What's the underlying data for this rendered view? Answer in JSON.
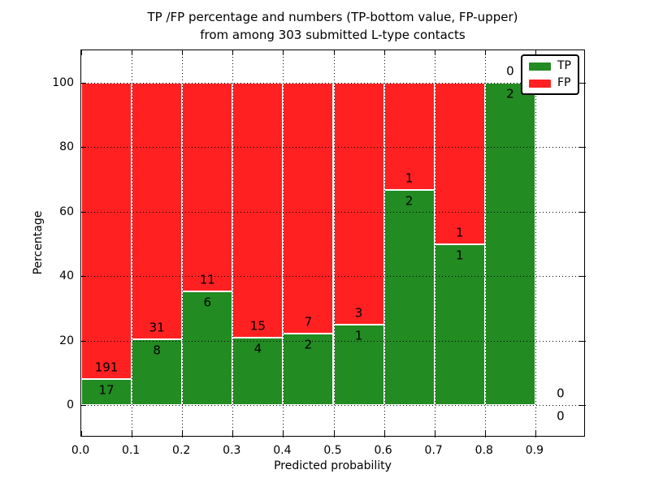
{
  "title": {
    "line1": "TP /FP percentage and numbers (TP-bottom value, FP-upper)",
    "line2": "from among 303 submitted L-type contacts"
  },
  "chart_data": {
    "type": "bar",
    "stacked": true,
    "normalization": "each bin scaled to 100%, green TP portion = TP/(TP+FP)*100",
    "total_contacts": 303,
    "bin_edges": [
      0.0,
      0.1,
      0.2,
      0.3,
      0.4,
      0.5,
      0.6,
      0.7,
      0.8,
      0.9,
      1.0
    ],
    "series": [
      {
        "name": "TP",
        "color": "#228b22",
        "counts": [
          17,
          8,
          6,
          4,
          2,
          1,
          2,
          1,
          2,
          0
        ]
      },
      {
        "name": "FP",
        "color": "#ff2121",
        "counts": [
          191,
          31,
          11,
          15,
          7,
          3,
          1,
          1,
          0,
          0
        ]
      }
    ],
    "tp_percent_by_bin": [
      8.17,
      20.51,
      35.29,
      21.05,
      22.22,
      25.0,
      66.67,
      50.0,
      100.0,
      0.0
    ],
    "xlabel": "Predicted probability",
    "ylabel": "Percentage",
    "xlim": [
      0.0,
      1.0
    ],
    "ylim": [
      -10,
      110
    ],
    "xticks": [
      0.0,
      0.1,
      0.2,
      0.3,
      0.4,
      0.5,
      0.6,
      0.7,
      0.8,
      0.9
    ],
    "xtick_labels": [
      "0.0",
      "0.1",
      "0.2",
      "0.3",
      "0.4",
      "0.5",
      "0.6",
      "0.7",
      "0.8",
      "0.9"
    ],
    "yticks": [
      0,
      20,
      40,
      60,
      80,
      100
    ],
    "ytick_labels": [
      "0",
      "20",
      "40",
      "60",
      "80",
      "100"
    ],
    "grid": "dotted, drawn above bars",
    "legend": {
      "position": "upper right",
      "entries": [
        {
          "label": "TP",
          "color": "#228b22"
        },
        {
          "label": "FP",
          "color": "#ff2121"
        }
      ]
    }
  },
  "colors": {
    "tp": "#228b22",
    "fp": "#ff2121",
    "grid": "#000000",
    "bar_edge": "#ffffff",
    "background": "#ffffff",
    "text": "#000000"
  }
}
